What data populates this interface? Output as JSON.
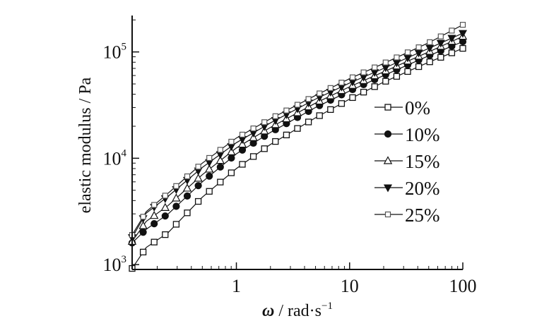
{
  "chart_data": {
    "type": "line",
    "xlabel_symbol": "ω",
    "xlabel_unit": " / rad·s",
    "xlabel_exp": "−1",
    "ylabel": "elastic modulus / Pa",
    "x_scale": "log",
    "y_scale": "log",
    "xlim": [
      0.12,
      100
    ],
    "ylim": [
      900,
      220000
    ],
    "x_ticks": [
      {
        "value": 1,
        "label": "1"
      },
      {
        "value": 10,
        "label": "10"
      },
      {
        "value": 100,
        "label": "100"
      }
    ],
    "y_ticks": [
      {
        "value": 1000,
        "base": "10",
        "exp": "3"
      },
      {
        "value": 10000,
        "base": "10",
        "exp": "4"
      },
      {
        "value": 100000,
        "base": "10",
        "exp": "5"
      }
    ],
    "grid": false,
    "legend_position": "right-center",
    "series": [
      {
        "name": "0%",
        "marker": "square-open",
        "points": [
          [
            0.12,
            920
          ],
          [
            0.16,
            1450
          ],
          [
            0.25,
            2000
          ],
          [
            0.5,
            4300
          ],
          [
            1,
            8000
          ],
          [
            2,
            13500
          ],
          [
            5,
            24000
          ],
          [
            10,
            36000
          ],
          [
            20,
            52000
          ],
          [
            50,
            80000
          ],
          [
            100,
            108000
          ]
        ]
      },
      {
        "name": "10%",
        "marker": "circle-filled",
        "points": [
          [
            0.12,
            1600
          ],
          [
            0.16,
            2150
          ],
          [
            0.25,
            3000
          ],
          [
            0.5,
            6000
          ],
          [
            1,
            11000
          ],
          [
            2,
            17500
          ],
          [
            5,
            30000
          ],
          [
            10,
            43000
          ],
          [
            20,
            60000
          ],
          [
            50,
            92000
          ],
          [
            100,
            125000
          ]
        ]
      },
      {
        "name": "15%",
        "marker": "triangle-up-open",
        "points": [
          [
            0.12,
            1650
          ],
          [
            0.16,
            2550
          ],
          [
            0.25,
            3600
          ],
          [
            0.5,
            7000
          ],
          [
            1,
            12500
          ],
          [
            2,
            19500
          ],
          [
            5,
            33000
          ],
          [
            10,
            47000
          ],
          [
            20,
            65000
          ],
          [
            50,
            100000
          ],
          [
            100,
            140000
          ]
        ]
      },
      {
        "name": "20%",
        "marker": "triangle-down-filled",
        "points": [
          [
            0.12,
            1800
          ],
          [
            0.16,
            3050
          ],
          [
            0.25,
            4400
          ],
          [
            0.5,
            8200
          ],
          [
            1,
            14000
          ],
          [
            2,
            21500
          ],
          [
            5,
            36000
          ],
          [
            10,
            51000
          ],
          [
            20,
            70000
          ],
          [
            50,
            108000
          ],
          [
            100,
            150000
          ]
        ]
      },
      {
        "name": "25%",
        "marker": "square-open-small",
        "points": [
          [
            0.12,
            1900
          ],
          [
            0.16,
            3150
          ],
          [
            0.25,
            4700
          ],
          [
            0.5,
            9000
          ],
          [
            1,
            15500
          ],
          [
            2,
            23500
          ],
          [
            5,
            39000
          ],
          [
            10,
            56000
          ],
          [
            20,
            78000
          ],
          [
            50,
            122000
          ],
          [
            100,
            180000
          ]
        ]
      }
    ]
  }
}
